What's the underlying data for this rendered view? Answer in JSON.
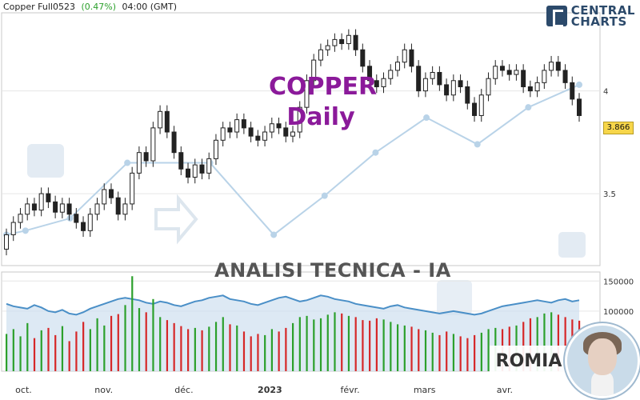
{
  "header": {
    "symbol": "Copper Full0523",
    "change": "(0.47%)",
    "timeframe": "04:00 (GMT)"
  },
  "logo": {
    "line1": "CENTRAL",
    "line2": "CHARTS"
  },
  "overlay": {
    "title_line1": "COPPER",
    "title_line2": "Daily",
    "subtitle": "ANALISI TECNICA - IA",
    "city": "ROMIA"
  },
  "colors": {
    "up": "#2ca02c",
    "down": "#d62728",
    "candle": "#222222",
    "volume_line": "#4a8fc7",
    "volume_fill": "#cfe0ef",
    "title": "#8b1a9a",
    "price_label_bg": "#f7d64a"
  },
  "chart_data": {
    "type": "candlestick",
    "x_labels": [
      "oct.",
      "nov.",
      "déc.",
      "2023",
      "févr.",
      "mars",
      "avr."
    ],
    "price_ticks": [
      "4",
      "3.5"
    ],
    "price_ylim": [
      3.15,
      4.38
    ],
    "last_price": "3.866",
    "volume_ticks": [
      "150000",
      "100000"
    ],
    "volume_ylim": [
      0,
      165000
    ],
    "candles": [
      [
        3.23,
        3.3
      ],
      [
        3.3,
        3.36
      ],
      [
        3.36,
        3.4
      ],
      [
        3.4,
        3.45
      ],
      [
        3.45,
        3.42
      ],
      [
        3.42,
        3.5
      ],
      [
        3.5,
        3.46
      ],
      [
        3.46,
        3.41
      ],
      [
        3.41,
        3.45
      ],
      [
        3.45,
        3.4
      ],
      [
        3.4,
        3.36
      ],
      [
        3.36,
        3.32
      ],
      [
        3.32,
        3.4
      ],
      [
        3.4,
        3.45
      ],
      [
        3.45,
        3.52
      ],
      [
        3.52,
        3.48
      ],
      [
        3.48,
        3.4
      ],
      [
        3.4,
        3.45
      ],
      [
        3.45,
        3.6
      ],
      [
        3.6,
        3.7
      ],
      [
        3.7,
        3.66
      ],
      [
        3.66,
        3.82
      ],
      [
        3.82,
        3.9
      ],
      [
        3.9,
        3.8
      ],
      [
        3.8,
        3.7
      ],
      [
        3.7,
        3.62
      ],
      [
        3.62,
        3.58
      ],
      [
        3.58,
        3.64
      ],
      [
        3.64,
        3.6
      ],
      [
        3.6,
        3.67
      ],
      [
        3.67,
        3.76
      ],
      [
        3.76,
        3.82
      ],
      [
        3.82,
        3.8
      ],
      [
        3.8,
        3.86
      ],
      [
        3.86,
        3.82
      ],
      [
        3.82,
        3.78
      ],
      [
        3.78,
        3.76
      ],
      [
        3.76,
        3.8
      ],
      [
        3.8,
        3.84
      ],
      [
        3.84,
        3.82
      ],
      [
        3.82,
        3.78
      ],
      [
        3.78,
        3.8
      ],
      [
        3.8,
        3.92
      ],
      [
        3.92,
        4.05
      ],
      [
        4.05,
        4.15
      ],
      [
        4.15,
        4.2
      ],
      [
        4.2,
        4.22
      ],
      [
        4.22,
        4.25
      ],
      [
        4.25,
        4.23
      ],
      [
        4.23,
        4.27
      ],
      [
        4.27,
        4.2
      ],
      [
        4.2,
        4.12
      ],
      [
        4.12,
        4.05
      ],
      [
        4.05,
        4.02
      ],
      [
        4.02,
        4.06
      ],
      [
        4.06,
        4.1
      ],
      [
        4.1,
        4.14
      ],
      [
        4.14,
        4.2
      ],
      [
        4.2,
        4.12
      ],
      [
        4.12,
        4.0
      ],
      [
        4.0,
        4.06
      ],
      [
        4.06,
        4.09
      ],
      [
        4.09,
        4.03
      ],
      [
        4.03,
        3.98
      ],
      [
        3.98,
        4.05
      ],
      [
        4.05,
        4.02
      ],
      [
        4.02,
        3.94
      ],
      [
        3.94,
        3.88
      ],
      [
        3.88,
        3.98
      ],
      [
        3.98,
        4.06
      ],
      [
        4.06,
        4.12
      ],
      [
        4.12,
        4.1
      ],
      [
        4.1,
        4.08
      ],
      [
        4.08,
        4.1
      ],
      [
        4.1,
        4.02
      ],
      [
        4.02,
        4.0
      ],
      [
        4.0,
        4.04
      ],
      [
        4.04,
        4.1
      ],
      [
        4.1,
        4.14
      ],
      [
        4.14,
        4.1
      ],
      [
        4.1,
        4.04
      ],
      [
        4.04,
        3.96
      ],
      [
        3.96,
        3.88
      ]
    ],
    "volumes": [
      62,
      70,
      58,
      80,
      55,
      68,
      72,
      60,
      75,
      50,
      66,
      82,
      70,
      88,
      76,
      92,
      95,
      110,
      158,
      105,
      98,
      120,
      90,
      85,
      80,
      75,
      70,
      72,
      68,
      74,
      82,
      90,
      78,
      76,
      66,
      58,
      62,
      60,
      70,
      66,
      72,
      80,
      90,
      92,
      86,
      88,
      94,
      98,
      96,
      92,
      90,
      85,
      84,
      88,
      86,
      82,
      78,
      76,
      74,
      70,
      68,
      64,
      60,
      66,
      62,
      58,
      55,
      60,
      64,
      70,
      72,
      70,
      74,
      76,
      82,
      88,
      90,
      96,
      98,
      94,
      90,
      86,
      84
    ],
    "volume_line": [
      112,
      108,
      106,
      104,
      110,
      106,
      100,
      98,
      102,
      96,
      94,
      98,
      104,
      108,
      112,
      116,
      120,
      122,
      120,
      118,
      114,
      112,
      116,
      114,
      110,
      108,
      112,
      116,
      118,
      122,
      124,
      126,
      120,
      118,
      116,
      112,
      110,
      114,
      118,
      122,
      124,
      120,
      116,
      118,
      122,
      126,
      124,
      120,
      118,
      116,
      112,
      110,
      108,
      106,
      104,
      108,
      110,
      106,
      104,
      102,
      100,
      98,
      96,
      98,
      100,
      98,
      96,
      94,
      96,
      100,
      104,
      108,
      110,
      112,
      114,
      116,
      118,
      116,
      114,
      118,
      120,
      116,
      118
    ],
    "projection_points": [
      [
        0,
        3.3
      ],
      [
        3,
        3.32
      ],
      [
        10,
        3.38
      ],
      [
        19,
        3.65
      ],
      [
        32,
        3.65
      ],
      [
        42,
        3.3
      ],
      [
        50,
        3.49
      ],
      [
        58,
        3.7
      ],
      [
        66,
        3.87
      ],
      [
        74,
        3.74
      ],
      [
        82,
        3.92
      ],
      [
        90,
        4.03
      ]
    ]
  }
}
